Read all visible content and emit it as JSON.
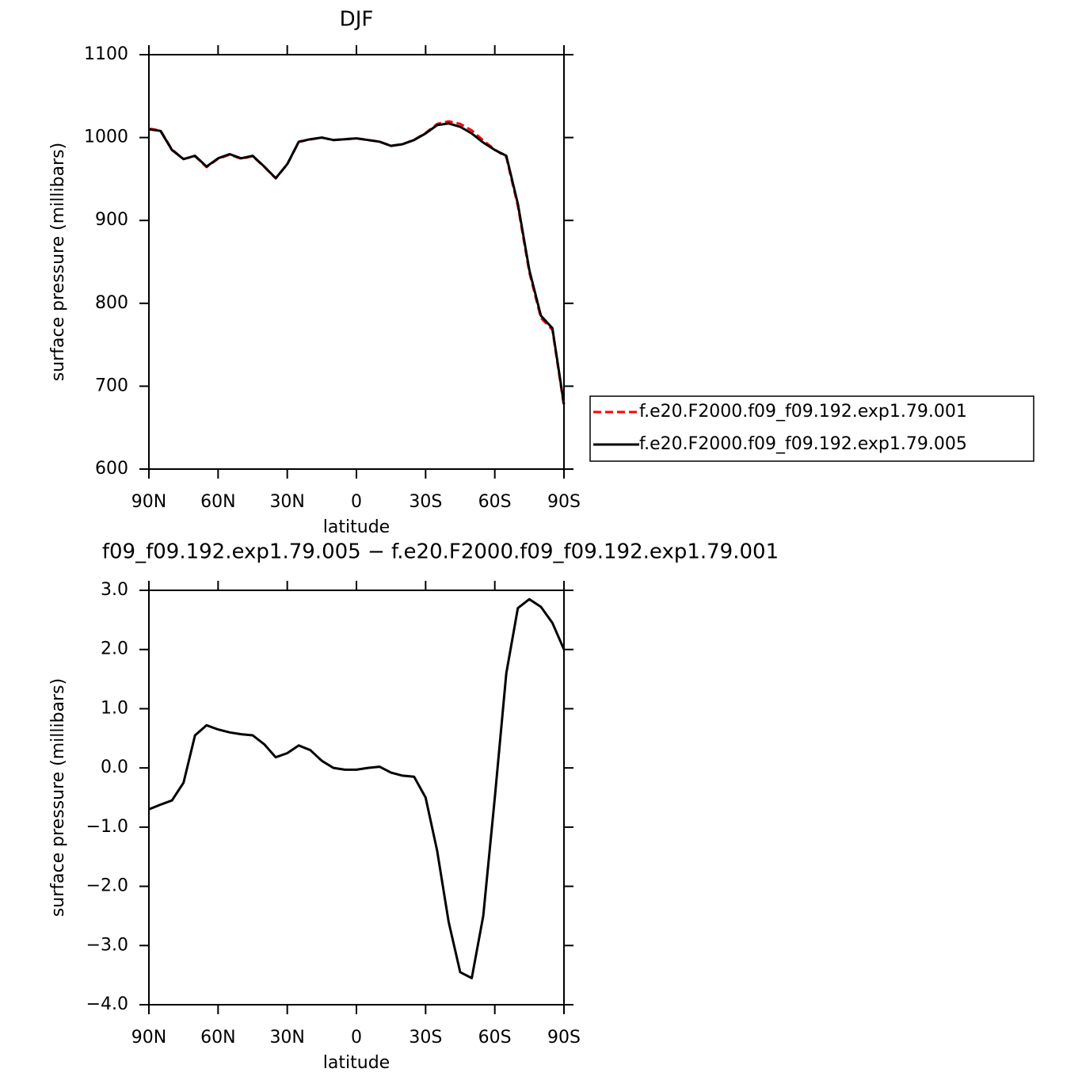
{
  "chart_data": [
    {
      "type": "line",
      "title": "DJF",
      "xlabel": "latitude",
      "ylabel": "surface pressure (millibars)",
      "x": [
        90,
        85,
        80,
        75,
        70,
        65,
        60,
        55,
        50,
        45,
        40,
        35,
        30,
        25,
        20,
        15,
        10,
        5,
        0,
        -5,
        -10,
        -15,
        -20,
        -25,
        -30,
        -35,
        -40,
        -45,
        -50,
        -55,
        -60,
        -65,
        -70,
        -75,
        -80,
        -85,
        -90
      ],
      "series": [
        {
          "name": "f.e20.F2000.f09_f09.192.exp1.79.001",
          "color": "#ff0000",
          "line_style": "dashed",
          "values": [
            1010.7,
            1008.6,
            985.6,
            974.2,
            977.5,
            964.3,
            974.4,
            979.4,
            974.4,
            977.5,
            964.6,
            950.8,
            967.8,
            994.6,
            997.7,
            999.9,
            997,
            998,
            999,
            997,
            995,
            990.1,
            992.1,
            997.2,
            1005.5,
            1016.4,
            1019.6,
            1016.5,
            1008.6,
            996.5,
            985.5,
            976.4,
            917.3,
            837.2,
            782.3,
            768,
            676
          ]
        },
        {
          "name": "f.e20.F2000.f09_f09.192.exp1.79.005",
          "color": "#000000",
          "line_style": "solid",
          "values": [
            1010,
            1008,
            985,
            974,
            978,
            965,
            975,
            980,
            975,
            978,
            965,
            951,
            968,
            995,
            998,
            1000,
            997,
            998,
            999,
            997,
            995,
            990,
            992,
            997,
            1005,
            1015,
            1017,
            1013,
            1005,
            994,
            985,
            978,
            920,
            840,
            785,
            770,
            678
          ]
        }
      ],
      "xlim": [
        90,
        -90
      ],
      "xticks": [
        {
          "value": 90,
          "label": "90N"
        },
        {
          "value": 60,
          "label": "60N"
        },
        {
          "value": 30,
          "label": "30N"
        },
        0,
        {
          "value": -30,
          "label": "30S"
        },
        {
          "value": -60,
          "label": "60S"
        },
        {
          "value": -90,
          "label": "90S"
        }
      ],
      "ylim": [
        600,
        1100
      ],
      "yticks": [
        600,
        700,
        800,
        900,
        1000,
        1100
      ],
      "legend": "right"
    },
    {
      "type": "line",
      "title": "f09_f09.192.exp1.79.005 − f.e20.F2000.f09_f09.192.exp1.79.001",
      "xlabel": "latitude",
      "ylabel": "surface pressure (millibars)",
      "x": [
        90,
        85,
        80,
        75,
        70,
        65,
        60,
        55,
        50,
        45,
        40,
        35,
        30,
        25,
        20,
        15,
        10,
        5,
        0,
        -5,
        -10,
        -15,
        -20,
        -25,
        -30,
        -35,
        -40,
        -45,
        -50,
        -55,
        -60,
        -65,
        -70,
        -75,
        -80,
        -85,
        -90
      ],
      "series": [
        {
          "color": "#000000",
          "line_style": "solid",
          "values": [
            -0.7,
            -0.62,
            -0.55,
            -0.25,
            0.55,
            0.72,
            0.65,
            0.6,
            0.57,
            0.55,
            0.4,
            0.18,
            0.25,
            0.38,
            0.3,
            0.12,
            0,
            -0.03,
            -0.03,
            0,
            0.02,
            -0.08,
            -0.13,
            -0.15,
            -0.5,
            -1.4,
            -2.6,
            -3.45,
            -3.55,
            -2.5,
            -0.5,
            1.6,
            2.7,
            2.85,
            2.72,
            2.45,
            2
          ]
        }
      ],
      "xlim": [
        90,
        -90
      ],
      "xticks": [
        {
          "value": 90,
          "label": "90N"
        },
        {
          "value": 60,
          "label": "60N"
        },
        {
          "value": 30,
          "label": "30N"
        },
        0,
        {
          "value": -30,
          "label": "30S"
        },
        {
          "value": -60,
          "label": "60S"
        },
        {
          "value": -90,
          "label": "90S"
        }
      ],
      "ylim": [
        -4,
        3
      ],
      "yticks": [
        {
          "value": -4,
          "label": "−4.0"
        },
        {
          "value": -3,
          "label": "−3.0"
        },
        {
          "value": -2,
          "label": "−2.0"
        },
        {
          "value": -1,
          "label": "−1.0"
        },
        {
          "value": 0,
          "label": "0.0"
        },
        {
          "value": 1,
          "label": "1.0"
        },
        {
          "value": 2,
          "label": "2.0"
        },
        {
          "value": 3,
          "label": "3.0"
        }
      ]
    }
  ]
}
